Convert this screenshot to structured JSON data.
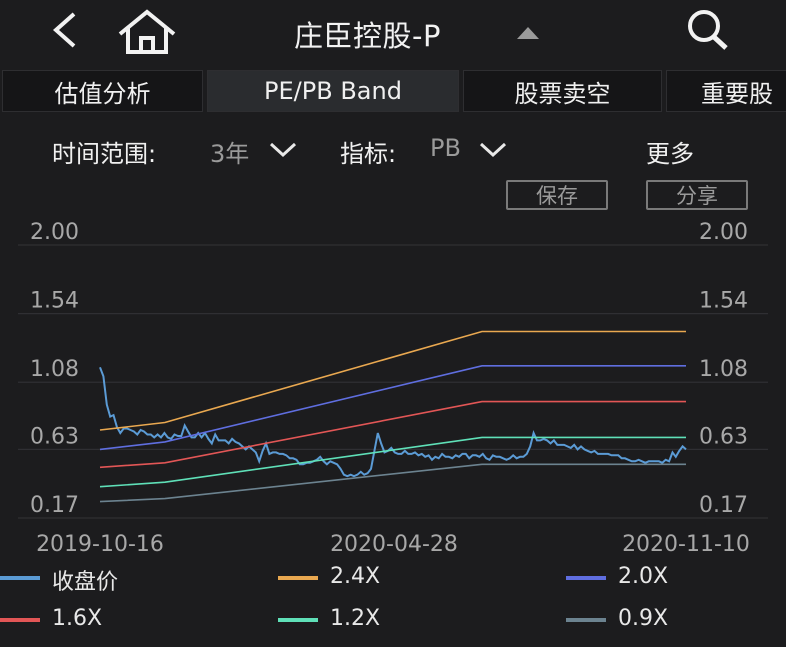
{
  "header": {
    "title": "庄臣控股-P"
  },
  "tabs": [
    {
      "label": "估值分析",
      "active": false
    },
    {
      "label": "PE/PB Band",
      "active": true
    },
    {
      "label": "股票卖空",
      "active": false
    },
    {
      "label": "重要股",
      "active": false
    }
  ],
  "filters": {
    "time_label": "时间范围:",
    "time_value": "3年",
    "metric_label": "指标:",
    "metric_value": "PB",
    "more_label": "更多"
  },
  "actions": {
    "save_label": "保存",
    "share_label": "分享"
  },
  "chart_data": {
    "type": "line",
    "x_ticks": [
      "2019-10-16",
      "2020-04-28",
      "2020-11-10"
    ],
    "y_ticks": [
      "2.00",
      "1.54",
      "1.08",
      "0.63",
      "0.17"
    ],
    "ylim": [
      0.17,
      2.0
    ],
    "grid": true,
    "legend_position": "bottom",
    "series": [
      {
        "name": "收盘价",
        "color": "#5b9bd5",
        "values": [
          1.18,
          1.12,
          0.93,
          0.85,
          0.86,
          0.78,
          0.74,
          0.77,
          0.77,
          0.76,
          0.75,
          0.73,
          0.76,
          0.75,
          0.73,
          0.73,
          0.71,
          0.73,
          0.71,
          0.74,
          0.71,
          0.7,
          0.73,
          0.72,
          0.72,
          0.79,
          0.75,
          0.71,
          0.71,
          0.74,
          0.71,
          0.74,
          0.7,
          0.67,
          0.73,
          0.69,
          0.69,
          0.69,
          0.67,
          0.7,
          0.68,
          0.67,
          0.65,
          0.63,
          0.65,
          0.63,
          0.61,
          0.55,
          0.62,
          0.67,
          0.6,
          0.61,
          0.61,
          0.6,
          0.6,
          0.59,
          0.57,
          0.57,
          0.56,
          0.53,
          0.53,
          0.54,
          0.54,
          0.55,
          0.56,
          0.58,
          0.55,
          0.53,
          0.55,
          0.54,
          0.53,
          0.5,
          0.46,
          0.45,
          0.46,
          0.45,
          0.46,
          0.48,
          0.46,
          0.47,
          0.5,
          0.62,
          0.74,
          0.67,
          0.61,
          0.62,
          0.64,
          0.61,
          0.6,
          0.6,
          0.62,
          0.6,
          0.6,
          0.61,
          0.59,
          0.6,
          0.58,
          0.59,
          0.56,
          0.58,
          0.57,
          0.6,
          0.58,
          0.58,
          0.57,
          0.59,
          0.58,
          0.6,
          0.6,
          0.57,
          0.59,
          0.59,
          0.58,
          0.6,
          0.57,
          0.56,
          0.59,
          0.58,
          0.58,
          0.57,
          0.56,
          0.57,
          0.59,
          0.57,
          0.58,
          0.58,
          0.6,
          0.65,
          0.74,
          0.69,
          0.69,
          0.7,
          0.69,
          0.67,
          0.69,
          0.66,
          0.66,
          0.66,
          0.65,
          0.64,
          0.66,
          0.63,
          0.65,
          0.63,
          0.62,
          0.61,
          0.62,
          0.6,
          0.6,
          0.6,
          0.6,
          0.59,
          0.59,
          0.59,
          0.57,
          0.57,
          0.56,
          0.55,
          0.55,
          0.56,
          0.55,
          0.54,
          0.55,
          0.55,
          0.55,
          0.55,
          0.54,
          0.56,
          0.55,
          0.61,
          0.58,
          0.62,
          0.65,
          0.63
        ]
      },
      {
        "name": "2.4X",
        "color": "#e9a850",
        "values": [
          0.76,
          0.81,
          1.42,
          1.42
        ]
      },
      {
        "name": "2.0X",
        "color": "#5f6ee0",
        "values": [
          0.63,
          0.68,
          1.19,
          1.19
        ]
      },
      {
        "name": "1.6X",
        "color": "#e25656",
        "values": [
          0.51,
          0.54,
          0.95,
          0.95
        ]
      },
      {
        "name": "1.2X",
        "color": "#5fe0b8",
        "values": [
          0.38,
          0.41,
          0.71,
          0.71
        ]
      },
      {
        "name": "0.9X",
        "color": "#6c8390",
        "values": [
          0.28,
          0.3,
          0.53,
          0.53
        ]
      }
    ],
    "band_breakpoints": [
      0,
      0.17,
      1,
      1.3
    ]
  }
}
